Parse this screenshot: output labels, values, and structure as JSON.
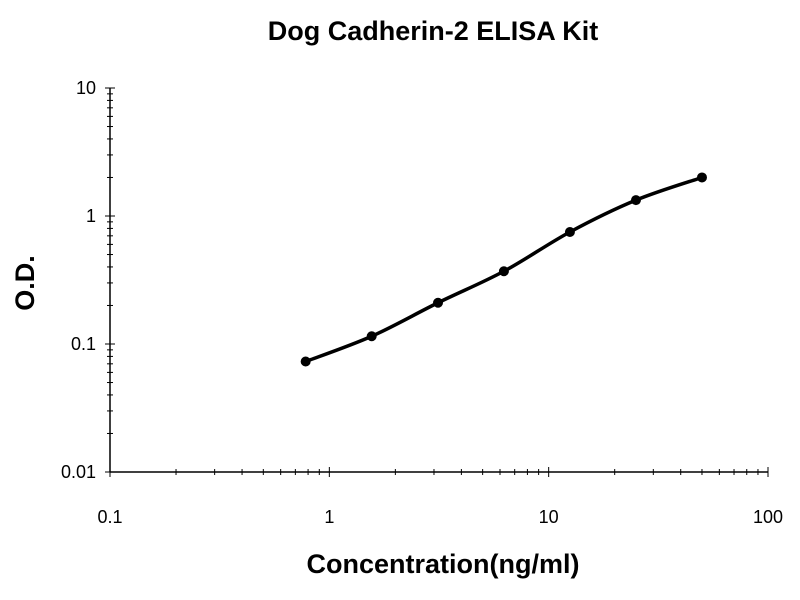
{
  "chart_data": {
    "type": "scatter",
    "title": "Dog Cadherin-2 ELISA Kit",
    "xlabel": "Concentration(ng/ml)",
    "ylabel": "O.D.",
    "x_scale": "log",
    "y_scale": "log",
    "xlim": [
      0.1,
      100
    ],
    "ylim": [
      0.01,
      10
    ],
    "x_tick_labels": [
      "0.1",
      "1",
      "10",
      "100"
    ],
    "y_tick_labels": [
      "0.01",
      "0.1",
      "1",
      "10"
    ],
    "grid": false,
    "legend": "none",
    "series": [
      {
        "x": [
          0.78,
          1.56,
          3.13,
          6.25,
          12.5,
          25,
          50
        ],
        "y": [
          0.073,
          0.115,
          0.21,
          0.37,
          0.75,
          1.33,
          2.0
        ],
        "marker": "circle",
        "line": "smooth",
        "color": "#000000"
      }
    ]
  }
}
